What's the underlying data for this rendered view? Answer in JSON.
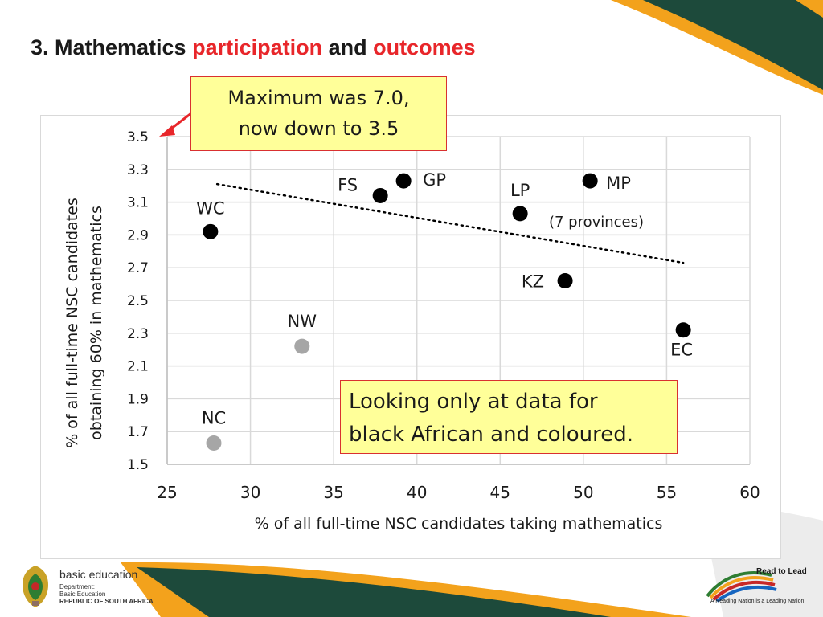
{
  "slide": {
    "title_parts": [
      "3. Mathematics ",
      "participation",
      " and ",
      "outcomes"
    ],
    "callout_max_lines": [
      "Maximum was 7.0,",
      "now down to 3.5"
    ],
    "callout_note_lines": [
      "Looking only at data for",
      "black African and coloured."
    ],
    "footer": {
      "dept_name": "basic education",
      "dept_line1": "Department:",
      "dept_line2": "Basic Education",
      "dept_line3": "REPUBLIC OF SOUTH AFRICA",
      "campaign_title": "Read to Lead",
      "campaign_tagline": "A Reading Nation is a Leading Nation"
    },
    "colors": {
      "accent_red": "#e8262a",
      "callout_fill": "#ffff99",
      "deco_green": "#1d4a3b",
      "deco_orange": "#f3a21c"
    }
  },
  "chart_data": {
    "type": "scatter",
    "xlabel": "% of all full-time NSC candidates taking mathematics",
    "ylabel_lines": [
      "% of all full-time NSC candidates",
      "obtaining 60% in mathematics"
    ],
    "xlim": [
      25,
      60
    ],
    "ylim": [
      1.5,
      3.5
    ],
    "x_ticks": [
      "25",
      "30",
      "35",
      "40",
      "45",
      "50",
      "55",
      "60"
    ],
    "y_ticks": [
      "1.5",
      "1.7",
      "1.9",
      "2.1",
      "2.3",
      "2.5",
      "2.7",
      "2.9",
      "3.1",
      "3.3",
      "3.5"
    ],
    "grid": true,
    "points": [
      {
        "label": "WC",
        "x": 27.6,
        "y": 2.92,
        "color": "#000000"
      },
      {
        "label": "FS",
        "x": 37.8,
        "y": 3.14,
        "color": "#000000"
      },
      {
        "label": "GP",
        "x": 39.2,
        "y": 3.23,
        "color": "#000000"
      },
      {
        "label": "LP",
        "x": 46.2,
        "y": 3.03,
        "color": "#000000"
      },
      {
        "label": "MP",
        "x": 50.4,
        "y": 3.23,
        "color": "#000000"
      },
      {
        "label": "KZ",
        "x": 48.9,
        "y": 2.62,
        "color": "#000000"
      },
      {
        "label": "EC",
        "x": 56.0,
        "y": 2.32,
        "color": "#000000"
      },
      {
        "label": "NW",
        "x": 33.1,
        "y": 2.22,
        "color": "#a6a6a6"
      },
      {
        "label": "NC",
        "x": 27.8,
        "y": 1.63,
        "color": "#a6a6a6"
      }
    ],
    "trendline": {
      "from": [
        28.0,
        3.21
      ],
      "to": [
        56.0,
        2.73
      ],
      "note": "(7 provinces)"
    },
    "annotation_arrow_to": {
      "x": 25,
      "y": 3.5
    }
  }
}
